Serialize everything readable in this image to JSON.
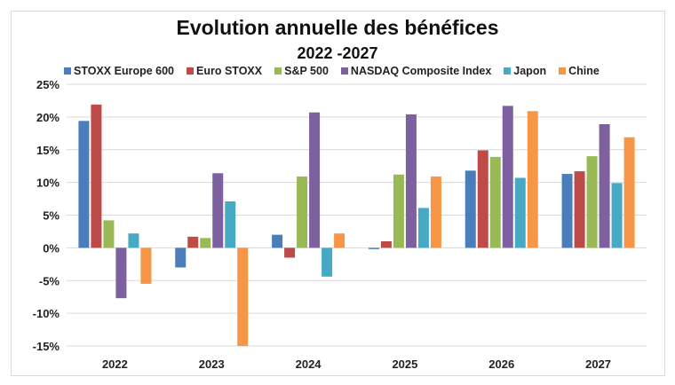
{
  "chart_data": {
    "type": "bar",
    "title": "Evolution annuelle des bénéfices",
    "subtitle": "2022 -2027",
    "categories": [
      "2022",
      "2023",
      "2024",
      "2025",
      "2026",
      "2027"
    ],
    "series": [
      {
        "name": "STOXX Europe 600",
        "color": "#4a7ebb",
        "values": [
          19.4,
          -3.0,
          2.0,
          -0.2,
          11.8,
          11.3
        ]
      },
      {
        "name": "Euro STOXX",
        "color": "#be4b48",
        "values": [
          21.9,
          1.7,
          -1.5,
          1.0,
          14.9,
          11.7
        ]
      },
      {
        "name": "S&P 500",
        "color": "#98b954",
        "values": [
          4.2,
          1.5,
          10.9,
          11.2,
          13.9,
          14.0
        ]
      },
      {
        "name": "NASDAQ Composite Index",
        "color": "#7d60a0",
        "values": [
          -7.7,
          11.4,
          20.7,
          20.4,
          21.7,
          18.9
        ]
      },
      {
        "name": "Japon",
        "color": "#46aac5",
        "values": [
          2.2,
          7.1,
          -4.4,
          6.1,
          10.7,
          9.9
        ]
      },
      {
        "name": "Chine",
        "color": "#f79646",
        "values": [
          -5.5,
          -15.2,
          2.2,
          10.9,
          20.9,
          16.9
        ]
      }
    ],
    "ylim": [
      -15,
      25
    ],
    "yticks": [
      "-15%",
      "-10%",
      "-5%",
      "0%",
      "5%",
      "10%",
      "15%",
      "20%",
      "25%"
    ],
    "ytick_values": [
      -15,
      -10,
      -5,
      0,
      5,
      10,
      15,
      20,
      25
    ],
    "grid": true,
    "legend": "top",
    "xlabel": "",
    "ylabel": ""
  }
}
